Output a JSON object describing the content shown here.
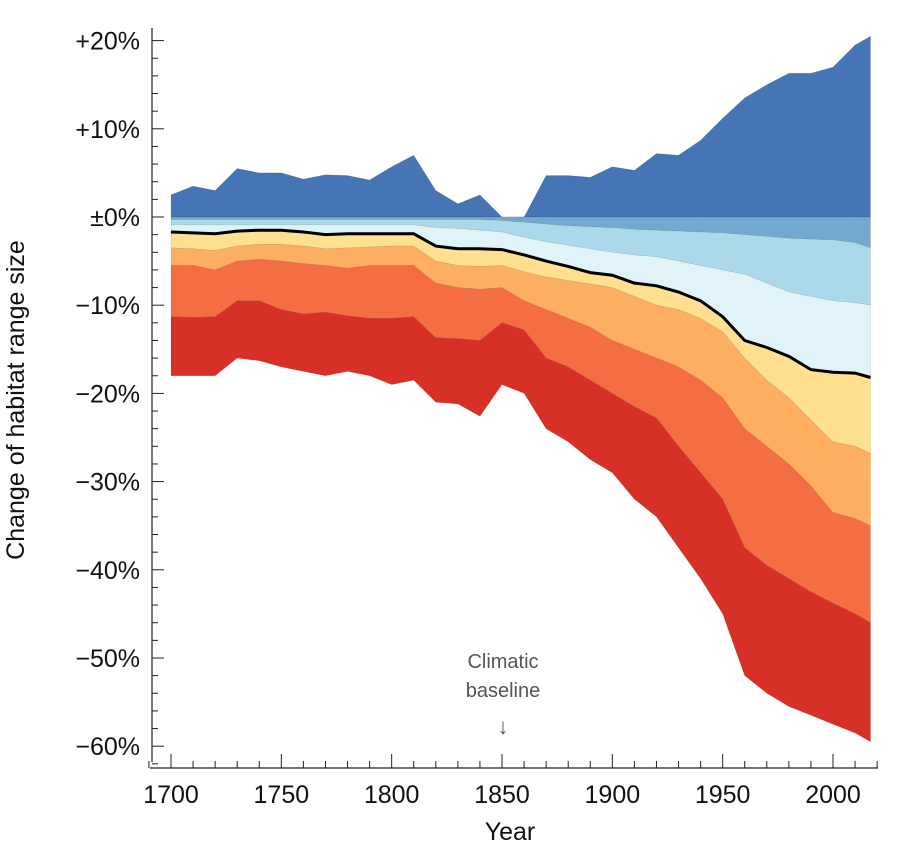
{
  "chart_data": {
    "type": "area",
    "xlabel": "Year",
    "ylabel": "Change of habitat range size",
    "xlim": [
      1690,
      2022
    ],
    "ylim": [
      -62,
      21
    ],
    "x_ticks": [
      "1700",
      "1750",
      "1800",
      "1850",
      "1900",
      "1950",
      "2000"
    ],
    "y_ticks": [
      {
        "value": 20,
        "label": "+20%"
      },
      {
        "value": 10,
        "label": "+10%"
      },
      {
        "value": 0,
        "label": "±0%"
      },
      {
        "value": -10,
        "label": "−10%"
      },
      {
        "value": -20,
        "label": "−20%"
      },
      {
        "value": -30,
        "label": "−30%"
      },
      {
        "value": -40,
        "label": "−40%"
      },
      {
        "value": -50,
        "label": "−50%"
      },
      {
        "value": -60,
        "label": "−60%"
      }
    ],
    "grid": false,
    "annotation": {
      "year": 1850,
      "text_line1": "Climatic",
      "text_line2": "baseline",
      "arrow": "↓"
    },
    "x": [
      1700,
      1710,
      1720,
      1730,
      1740,
      1750,
      1760,
      1770,
      1780,
      1790,
      1800,
      1810,
      1820,
      1830,
      1840,
      1850,
      1860,
      1870,
      1880,
      1890,
      1900,
      1910,
      1920,
      1930,
      1940,
      1950,
      1960,
      1970,
      1980,
      1990,
      2000,
      2010,
      2017
    ],
    "boundaries": [
      [
        2.5,
        3.5,
        3,
        5.5,
        5,
        5,
        4.3,
        4.8,
        4.7,
        4.2,
        5.7,
        7,
        3,
        1.5,
        2.5,
        0,
        0,
        4.7,
        4.7,
        4.5,
        5.7,
        5.3,
        7.2,
        7,
        8.7,
        11.2,
        13.5,
        15,
        16.3,
        16.3,
        17,
        19.5,
        20.5
      ],
      [
        0,
        0,
        0,
        0,
        0,
        0,
        0,
        0,
        0,
        0,
        0,
        0,
        0,
        0,
        0,
        0,
        0,
        0,
        0,
        0,
        0,
        0,
        0,
        0,
        0,
        0,
        0,
        0,
        0,
        0,
        0,
        0,
        0
      ],
      [
        -0.3,
        -0.3,
        -0.3,
        -0.3,
        -0.3,
        -0.3,
        -0.3,
        -0.3,
        -0.3,
        -0.3,
        -0.3,
        -0.3,
        -0.3,
        -0.3,
        -0.3,
        -0.4,
        -0.6,
        -0.8,
        -1,
        -1.1,
        -1.2,
        -1.4,
        -1.5,
        -1.6,
        -1.7,
        -1.8,
        -2,
        -2.2,
        -2.4,
        -2.5,
        -2.6,
        -2.9,
        -3.5
      ],
      [
        -0.9,
        -0.9,
        -0.9,
        -0.9,
        -0.9,
        -0.9,
        -0.9,
        -0.9,
        -0.9,
        -0.9,
        -0.9,
        -0.9,
        -1.2,
        -1.3,
        -1.5,
        -1.7,
        -2.3,
        -2.8,
        -3.2,
        -3.6,
        -4,
        -4.3,
        -4.5,
        -5,
        -5.5,
        -6,
        -6.5,
        -7.5,
        -8.5,
        -9,
        -9.5,
        -9.7,
        -10
      ],
      [
        -1.7,
        -1.8,
        -1.9,
        -1.6,
        -1.5,
        -1.5,
        -1.7,
        -2,
        -1.9,
        -1.9,
        -1.9,
        -1.9,
        -3.3,
        -3.6,
        -3.6,
        -3.7,
        -4.3,
        -5,
        -5.6,
        -6.3,
        -6.6,
        -7.5,
        -7.8,
        -8.5,
        -9.5,
        -11.3,
        -14,
        -14.8,
        -15.8,
        -17.3,
        -17.6,
        -17.7,
        -18.2
      ],
      [
        -3.5,
        -3.6,
        -3.8,
        -3.3,
        -3.1,
        -3.1,
        -3.3,
        -3.6,
        -3.5,
        -3.4,
        -3.3,
        -3.3,
        -5,
        -5.5,
        -5.6,
        -5.5,
        -6.2,
        -6.8,
        -7.2,
        -7.6,
        -8,
        -9,
        -10,
        -10.5,
        -11.5,
        -13,
        -16,
        -18.5,
        -20.5,
        -23,
        -25.5,
        -26,
        -26.8
      ],
      [
        -5.5,
        -5.5,
        -6,
        -5,
        -4.8,
        -5,
        -5.3,
        -5.5,
        -5.8,
        -5.5,
        -5.5,
        -5.5,
        -7.5,
        -8,
        -8.2,
        -8,
        -9.5,
        -10.5,
        -11.5,
        -12.5,
        -14,
        -15,
        -16,
        -17,
        -18.5,
        -20.5,
        -24,
        -26,
        -28,
        -30.5,
        -33.5,
        -34.2,
        -35
      ],
      [
        -11.3,
        -11.4,
        -11.3,
        -9.5,
        -9.5,
        -10.5,
        -11,
        -10.8,
        -11.2,
        -11.5,
        -11.5,
        -11.3,
        -13.7,
        -13.8,
        -14,
        -12,
        -12.8,
        -16,
        -17,
        -18.5,
        -20,
        -21.5,
        -22.8,
        -26,
        -29,
        -32,
        -37.5,
        -39.5,
        -41,
        -42.5,
        -43.8,
        -45,
        -46
      ],
      [
        -18,
        -18,
        -18,
        -16,
        -16.3,
        -17,
        -17.5,
        -18,
        -17.5,
        -18,
        -19,
        -18.5,
        -21,
        -21.2,
        -22.6,
        -19,
        -20,
        -24,
        -25.5,
        -27.5,
        -29,
        -32,
        -34,
        -37.5,
        -41,
        -45,
        -52,
        -54,
        -55.5,
        -56.5,
        -57.5,
        -58.5,
        -59.5
      ]
    ],
    "median_boundary_index": 4,
    "band_colors": [
      "#4575b4",
      "#74a9cf",
      "#abd9e9",
      "#e0f3f8",
      "#fee090",
      "#fdae61",
      "#f46d43",
      "#d73027"
    ]
  }
}
